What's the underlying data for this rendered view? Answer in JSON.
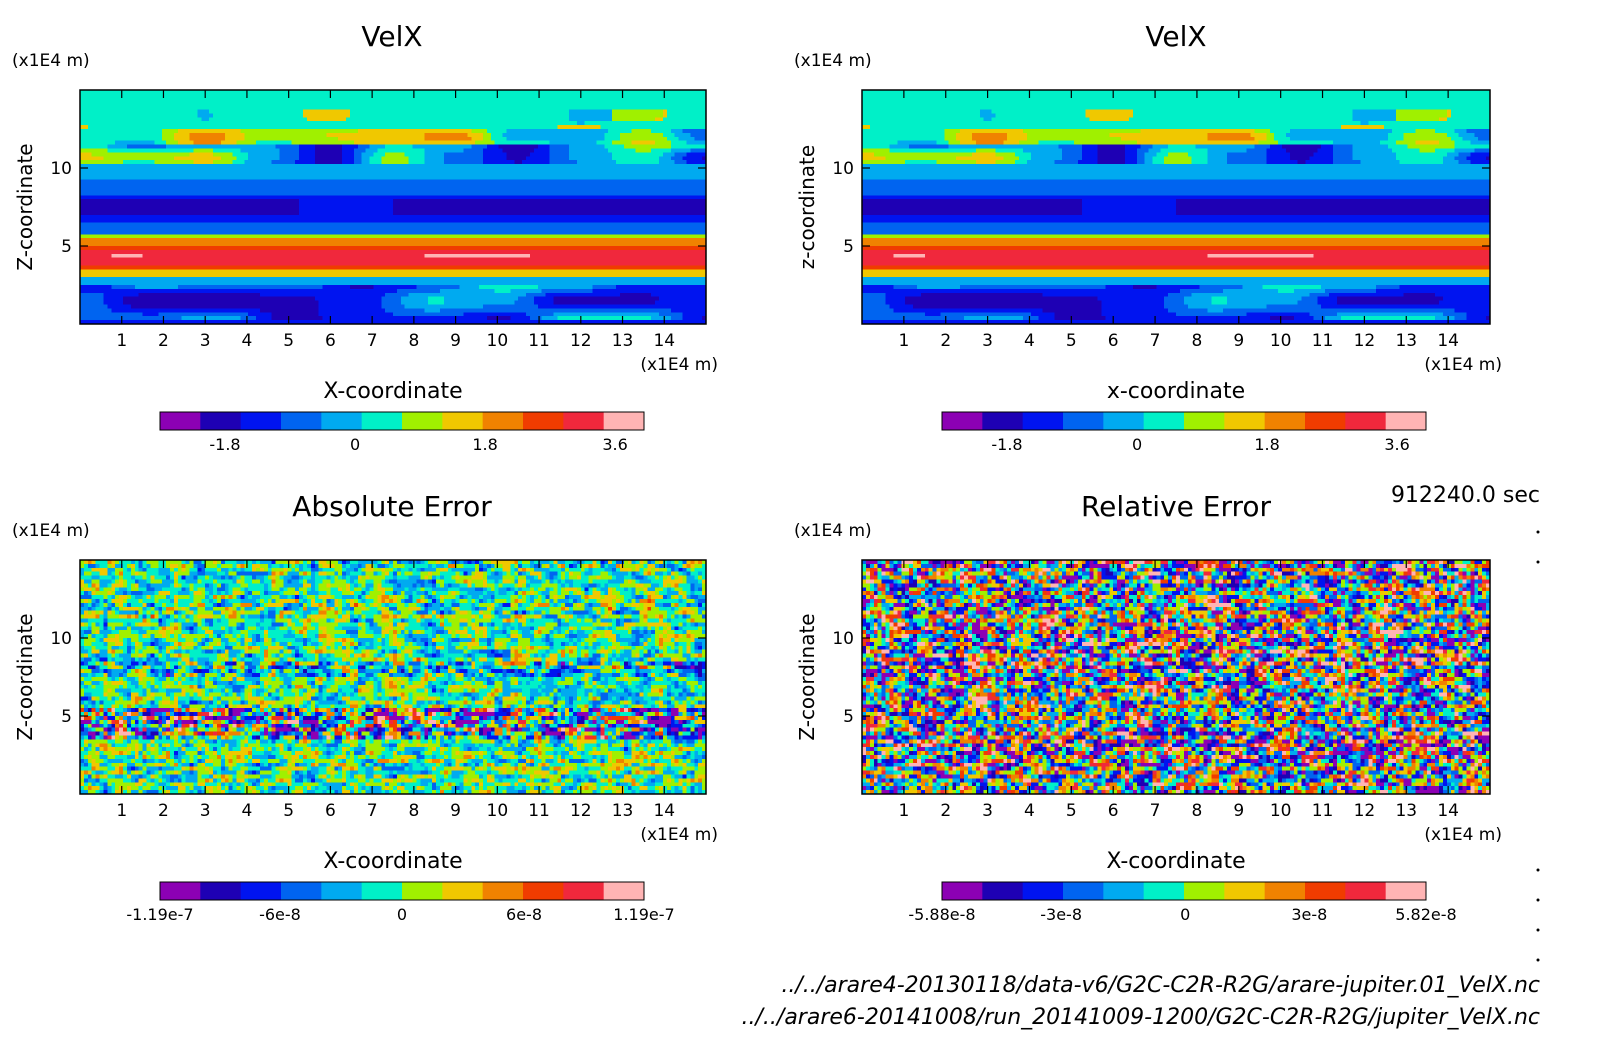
{
  "time_label": "912240.0 sec",
  "file_lines": [
    "../../arare4-20130118/data-v6/G2C-C2R-R2G/arare-jupiter.01_VelX.nc",
    "../../arare6-20141008/run_20141009-1200/G2C-C2R-R2G/jupiter_VelX.nc"
  ],
  "palette": [
    "#8c00b4",
    "#1e00b4",
    "#0014f0",
    "#0064f0",
    "#00aaf0",
    "#00f0c8",
    "#a0f000",
    "#f0c800",
    "#f08200",
    "#f03c00",
    "#f0283c",
    "#ffb4b4"
  ],
  "chart_data": [
    {
      "type": "heatmap",
      "title": "VelX",
      "xlabel": "X-coordinate",
      "ylabel": "Z-coordinate",
      "x_unit": "(x1E4 m)",
      "y_unit": "(x1E4 m)",
      "xlim": [
        0,
        15
      ],
      "ylim": [
        0,
        15
      ],
      "x_ticks": [
        1,
        2,
        3,
        4,
        5,
        6,
        7,
        8,
        9,
        10,
        11,
        12,
        13,
        14
      ],
      "y_ticks": [
        5,
        10
      ],
      "field": "velx",
      "colorbar": {
        "min": -2.7,
        "max": 4.0,
        "labels": [
          -1.8,
          0,
          1.8,
          3.6
        ],
        "label_text": [
          "-1.8",
          "0",
          "1.8",
          "3.6"
        ]
      }
    },
    {
      "type": "heatmap",
      "title": "VelX",
      "xlabel": "x-coordinate",
      "ylabel": "z-coordinate",
      "x_unit": "(x1E4 m)",
      "y_unit": "(x1E4 m)",
      "xlim": [
        0,
        15
      ],
      "ylim": [
        0,
        15
      ],
      "x_ticks": [
        1,
        2,
        3,
        4,
        5,
        6,
        7,
        8,
        9,
        10,
        11,
        12,
        13,
        14
      ],
      "y_ticks": [
        5,
        10
      ],
      "field": "velx",
      "colorbar": {
        "min": -2.7,
        "max": 4.0,
        "labels": [
          -1.8,
          0,
          1.8,
          3.6
        ],
        "label_text": [
          "-1.8",
          "0",
          "1.8",
          "3.6"
        ]
      }
    },
    {
      "type": "heatmap",
      "title": "Absolute Error",
      "xlabel": "X-coordinate",
      "ylabel": "Z-coordinate",
      "x_unit": "(x1E4 m)",
      "y_unit": "(x1E4 m)",
      "xlim": [
        0,
        15
      ],
      "ylim": [
        0,
        15
      ],
      "x_ticks": [
        1,
        2,
        3,
        4,
        5,
        6,
        7,
        8,
        9,
        10,
        11,
        12,
        13,
        14
      ],
      "y_ticks": [
        5,
        10
      ],
      "field": "abs_error",
      "colorbar": {
        "min": -1.19e-07,
        "max": 1.19e-07,
        "labels": [
          -1.19e-07,
          -6e-08,
          0,
          6e-08,
          1.19e-07
        ],
        "label_text": [
          "-1.19e-7",
          "-6e-8",
          "0",
          "6e-8",
          "1.19e-7"
        ]
      }
    },
    {
      "type": "heatmap",
      "title": "Relative Error",
      "xlabel": "X-coordinate",
      "ylabel": "Z-coordinate",
      "x_unit": "(x1E4 m)",
      "y_unit": "(x1E4 m)",
      "xlim": [
        0,
        15
      ],
      "ylim": [
        0,
        15
      ],
      "x_ticks": [
        1,
        2,
        3,
        4,
        5,
        6,
        7,
        8,
        9,
        10,
        11,
        12,
        13,
        14
      ],
      "y_ticks": [
        5,
        10
      ],
      "field": "rel_error",
      "colorbar": {
        "min": -5.88e-08,
        "max": 5.82e-08,
        "labels": [
          -5.88e-08,
          -3e-08,
          0,
          3e-08,
          5.82e-08
        ],
        "label_text": [
          "-5.88e-8",
          "-3e-8",
          "0",
          "3e-8",
          "5.82e-8"
        ]
      }
    }
  ]
}
